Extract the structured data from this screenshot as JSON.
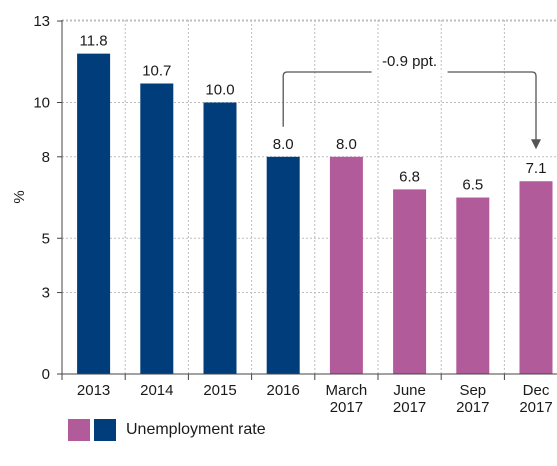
{
  "chart_data": {
    "type": "bar",
    "categories": [
      [
        "2013"
      ],
      [
        "2014"
      ],
      [
        "2015"
      ],
      [
        "2016"
      ],
      [
        "March",
        "2017"
      ],
      [
        "June",
        "2017"
      ],
      [
        "Sep",
        "2017"
      ],
      [
        "Dec",
        "2017"
      ]
    ],
    "values": [
      11.8,
      10.7,
      10.0,
      8.0,
      8.0,
      6.8,
      6.5,
      7.1
    ],
    "value_labels": [
      "11.8",
      "10.7",
      "10.0",
      "8.0",
      "8.0",
      "6.8",
      "6.5",
      "7.1"
    ],
    "bar_colors": [
      "#003d7a",
      "#003d7a",
      "#003d7a",
      "#003d7a",
      "#b25b9a",
      "#b25b9a",
      "#b25b9a",
      "#b25b9a"
    ],
    "ylabel": "%",
    "ylim": [
      0,
      13
    ],
    "yticks": [
      0,
      3,
      5,
      8,
      10,
      13
    ],
    "grid": true,
    "annotation": {
      "text": "-0.9 ppt.",
      "from_category": "2016",
      "to_category": "Dec 2017"
    },
    "legend": {
      "label": "Unemployment rate",
      "position": "bottom-left",
      "colors": [
        "#b25b9a",
        "#003d7a"
      ]
    }
  }
}
